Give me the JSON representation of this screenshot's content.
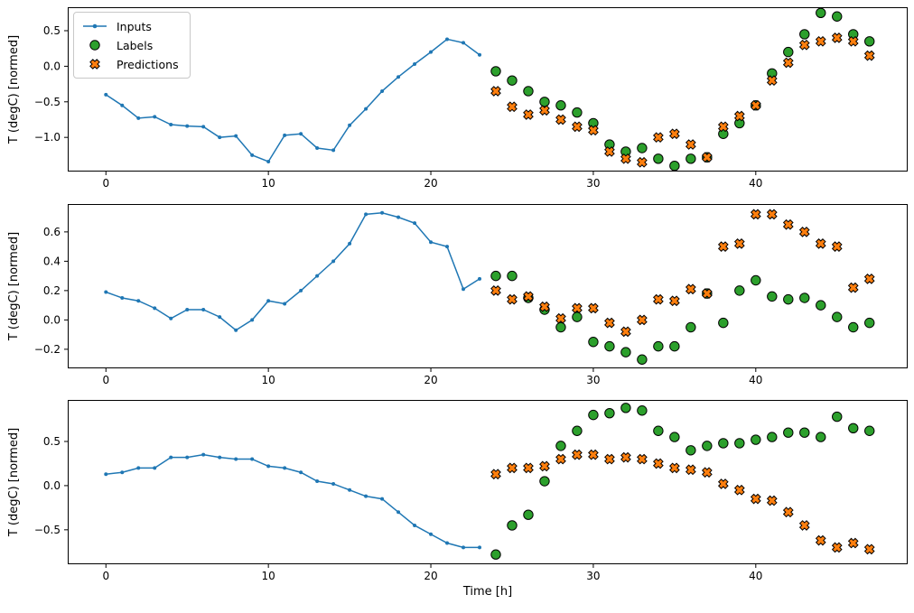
{
  "figure": {
    "xlabel": "Time [h]",
    "ylabel": "T (degC) [normed]",
    "legend": [
      "Inputs",
      "Labels",
      "Predictions"
    ],
    "colors": {
      "inputs": "#1f77b4",
      "labels": "#2ca02c",
      "predictions": "#ff7f0e",
      "marker_edge": "#000000",
      "spine": "#000000",
      "background": "#ffffff"
    }
  },
  "chart_data": [
    {
      "type": "line+scatter",
      "title": "",
      "xlabel": "",
      "ylabel": "T (degC) [normed]",
      "xlim": [
        -2.35,
        49.35
      ],
      "ylim": [
        -1.48,
        0.83
      ],
      "xticks": [
        0,
        10,
        20,
        30,
        40
      ],
      "yticks": [
        0.5,
        0.0,
        -0.5,
        -1.0
      ],
      "grid": false,
      "legend_position": "upper left",
      "series": [
        {
          "name": "Inputs",
          "marker": "line-dot",
          "x": [
            0,
            1,
            2,
            3,
            4,
            5,
            6,
            7,
            8,
            9,
            10,
            11,
            12,
            13,
            14,
            15,
            16,
            17,
            18,
            19,
            20,
            21,
            22,
            23
          ],
          "y": [
            -0.4,
            -0.55,
            -0.73,
            -0.71,
            -0.82,
            -0.84,
            -0.85,
            -1.0,
            -0.98,
            -1.25,
            -1.34,
            -0.97,
            -0.95,
            -1.15,
            -1.18,
            -0.83,
            -0.6,
            -0.35,
            -0.15,
            0.03,
            0.2,
            0.38,
            0.33,
            0.16
          ]
        },
        {
          "name": "Labels",
          "marker": "circle",
          "x": [
            24,
            25,
            26,
            27,
            28,
            29,
            30,
            31,
            32,
            33,
            34,
            35,
            36,
            37,
            38,
            39,
            40,
            41,
            42,
            43,
            44,
            45,
            46,
            47
          ],
          "y": [
            -0.07,
            -0.2,
            -0.35,
            -0.5,
            -0.55,
            -0.65,
            -0.8,
            -1.1,
            -1.2,
            -1.15,
            -1.3,
            -1.4,
            -1.3,
            -1.28,
            -0.95,
            -0.8,
            -0.55,
            -0.1,
            0.2,
            0.45,
            0.75,
            0.7,
            0.45,
            0.35
          ]
        },
        {
          "name": "Predictions",
          "marker": "X",
          "x": [
            24,
            25,
            26,
            27,
            28,
            29,
            30,
            31,
            32,
            33,
            34,
            35,
            36,
            37,
            38,
            39,
            40,
            41,
            42,
            43,
            44,
            45,
            46,
            47
          ],
          "y": [
            -0.35,
            -0.57,
            -0.68,
            -0.62,
            -0.75,
            -0.85,
            -0.9,
            -1.2,
            -1.3,
            -1.35,
            -1.0,
            -0.95,
            -1.1,
            -1.28,
            -0.85,
            -0.7,
            -0.55,
            -0.2,
            0.05,
            0.3,
            0.35,
            0.4,
            0.35,
            0.15
          ]
        }
      ]
    },
    {
      "type": "line+scatter",
      "title": "",
      "xlabel": "",
      "ylabel": "T (degC) [normed]",
      "xlim": [
        -2.35,
        49.35
      ],
      "ylim": [
        -0.33,
        0.79
      ],
      "xticks": [
        0,
        10,
        20,
        30,
        40
      ],
      "yticks": [
        0.6,
        0.4,
        0.2,
        0.0,
        -0.2
      ],
      "grid": false,
      "series": [
        {
          "name": "Inputs",
          "marker": "line-dot",
          "x": [
            0,
            1,
            2,
            3,
            4,
            5,
            6,
            7,
            8,
            9,
            10,
            11,
            12,
            13,
            14,
            15,
            16,
            17,
            18,
            19,
            20,
            21,
            22,
            23
          ],
          "y": [
            0.19,
            0.15,
            0.13,
            0.08,
            0.01,
            0.07,
            0.07,
            0.02,
            -0.07,
            0.0,
            0.13,
            0.11,
            0.2,
            0.3,
            0.4,
            0.52,
            0.72,
            0.73,
            0.7,
            0.66,
            0.53,
            0.5,
            0.21,
            0.28
          ]
        },
        {
          "name": "Labels",
          "marker": "circle",
          "x": [
            24,
            25,
            26,
            27,
            28,
            29,
            30,
            31,
            32,
            33,
            34,
            35,
            36,
            37,
            38,
            39,
            40,
            41,
            42,
            43,
            44,
            45,
            46,
            47
          ],
          "y": [
            0.3,
            0.3,
            0.15,
            0.07,
            -0.05,
            0.02,
            -0.15,
            -0.18,
            -0.22,
            -0.27,
            -0.18,
            -0.18,
            -0.05,
            0.18,
            -0.02,
            0.2,
            0.27,
            0.16,
            0.14,
            0.15,
            0.1,
            0.02,
            -0.05,
            -0.02
          ]
        },
        {
          "name": "Predictions",
          "marker": "X",
          "x": [
            24,
            25,
            26,
            27,
            28,
            29,
            30,
            31,
            32,
            33,
            34,
            35,
            36,
            37,
            38,
            39,
            40,
            41,
            42,
            43,
            44,
            45,
            46,
            47
          ],
          "y": [
            0.2,
            0.14,
            0.16,
            0.09,
            0.01,
            0.08,
            0.08,
            -0.02,
            -0.08,
            0.0,
            0.14,
            0.13,
            0.21,
            0.18,
            0.5,
            0.52,
            0.72,
            0.72,
            0.65,
            0.6,
            0.52,
            0.5,
            0.22,
            0.28
          ]
        }
      ]
    },
    {
      "type": "line+scatter",
      "title": "",
      "xlabel": "Time [h]",
      "ylabel": "T (degC) [normed]",
      "xlim": [
        -2.35,
        49.35
      ],
      "ylim": [
        -0.89,
        0.97
      ],
      "xticks": [
        0,
        10,
        20,
        30,
        40
      ],
      "yticks": [
        0.5,
        0.0,
        -0.5
      ],
      "grid": false,
      "series": [
        {
          "name": "Inputs",
          "marker": "line-dot",
          "x": [
            0,
            1,
            2,
            3,
            4,
            5,
            6,
            7,
            8,
            9,
            10,
            11,
            12,
            13,
            14,
            15,
            16,
            17,
            18,
            19,
            20,
            21,
            22,
            23
          ],
          "y": [
            0.13,
            0.15,
            0.2,
            0.2,
            0.32,
            0.32,
            0.35,
            0.32,
            0.3,
            0.3,
            0.22,
            0.2,
            0.15,
            0.05,
            0.02,
            -0.05,
            -0.12,
            -0.15,
            -0.3,
            -0.45,
            -0.55,
            -0.65,
            -0.7,
            -0.7
          ]
        },
        {
          "name": "Labels",
          "marker": "circle",
          "x": [
            24,
            25,
            26,
            27,
            28,
            29,
            30,
            31,
            32,
            33,
            34,
            35,
            36,
            37,
            38,
            39,
            40,
            41,
            42,
            43,
            44,
            45,
            46,
            47
          ],
          "y": [
            -0.78,
            -0.45,
            -0.33,
            0.05,
            0.45,
            0.62,
            0.8,
            0.82,
            0.88,
            0.85,
            0.62,
            0.55,
            0.4,
            0.45,
            0.48,
            0.48,
            0.52,
            0.55,
            0.6,
            0.6,
            0.55,
            0.78,
            0.65,
            0.62
          ]
        },
        {
          "name": "Predictions",
          "marker": "X",
          "x": [
            24,
            25,
            26,
            27,
            28,
            29,
            30,
            31,
            32,
            33,
            34,
            35,
            36,
            37,
            38,
            39,
            40,
            41,
            42,
            43,
            44,
            45,
            46,
            47
          ],
          "y": [
            0.13,
            0.2,
            0.2,
            0.22,
            0.3,
            0.35,
            0.35,
            0.3,
            0.32,
            0.3,
            0.25,
            0.2,
            0.18,
            0.15,
            0.02,
            -0.05,
            -0.15,
            -0.17,
            -0.3,
            -0.45,
            -0.62,
            -0.7,
            -0.65,
            -0.72
          ]
        }
      ]
    }
  ]
}
